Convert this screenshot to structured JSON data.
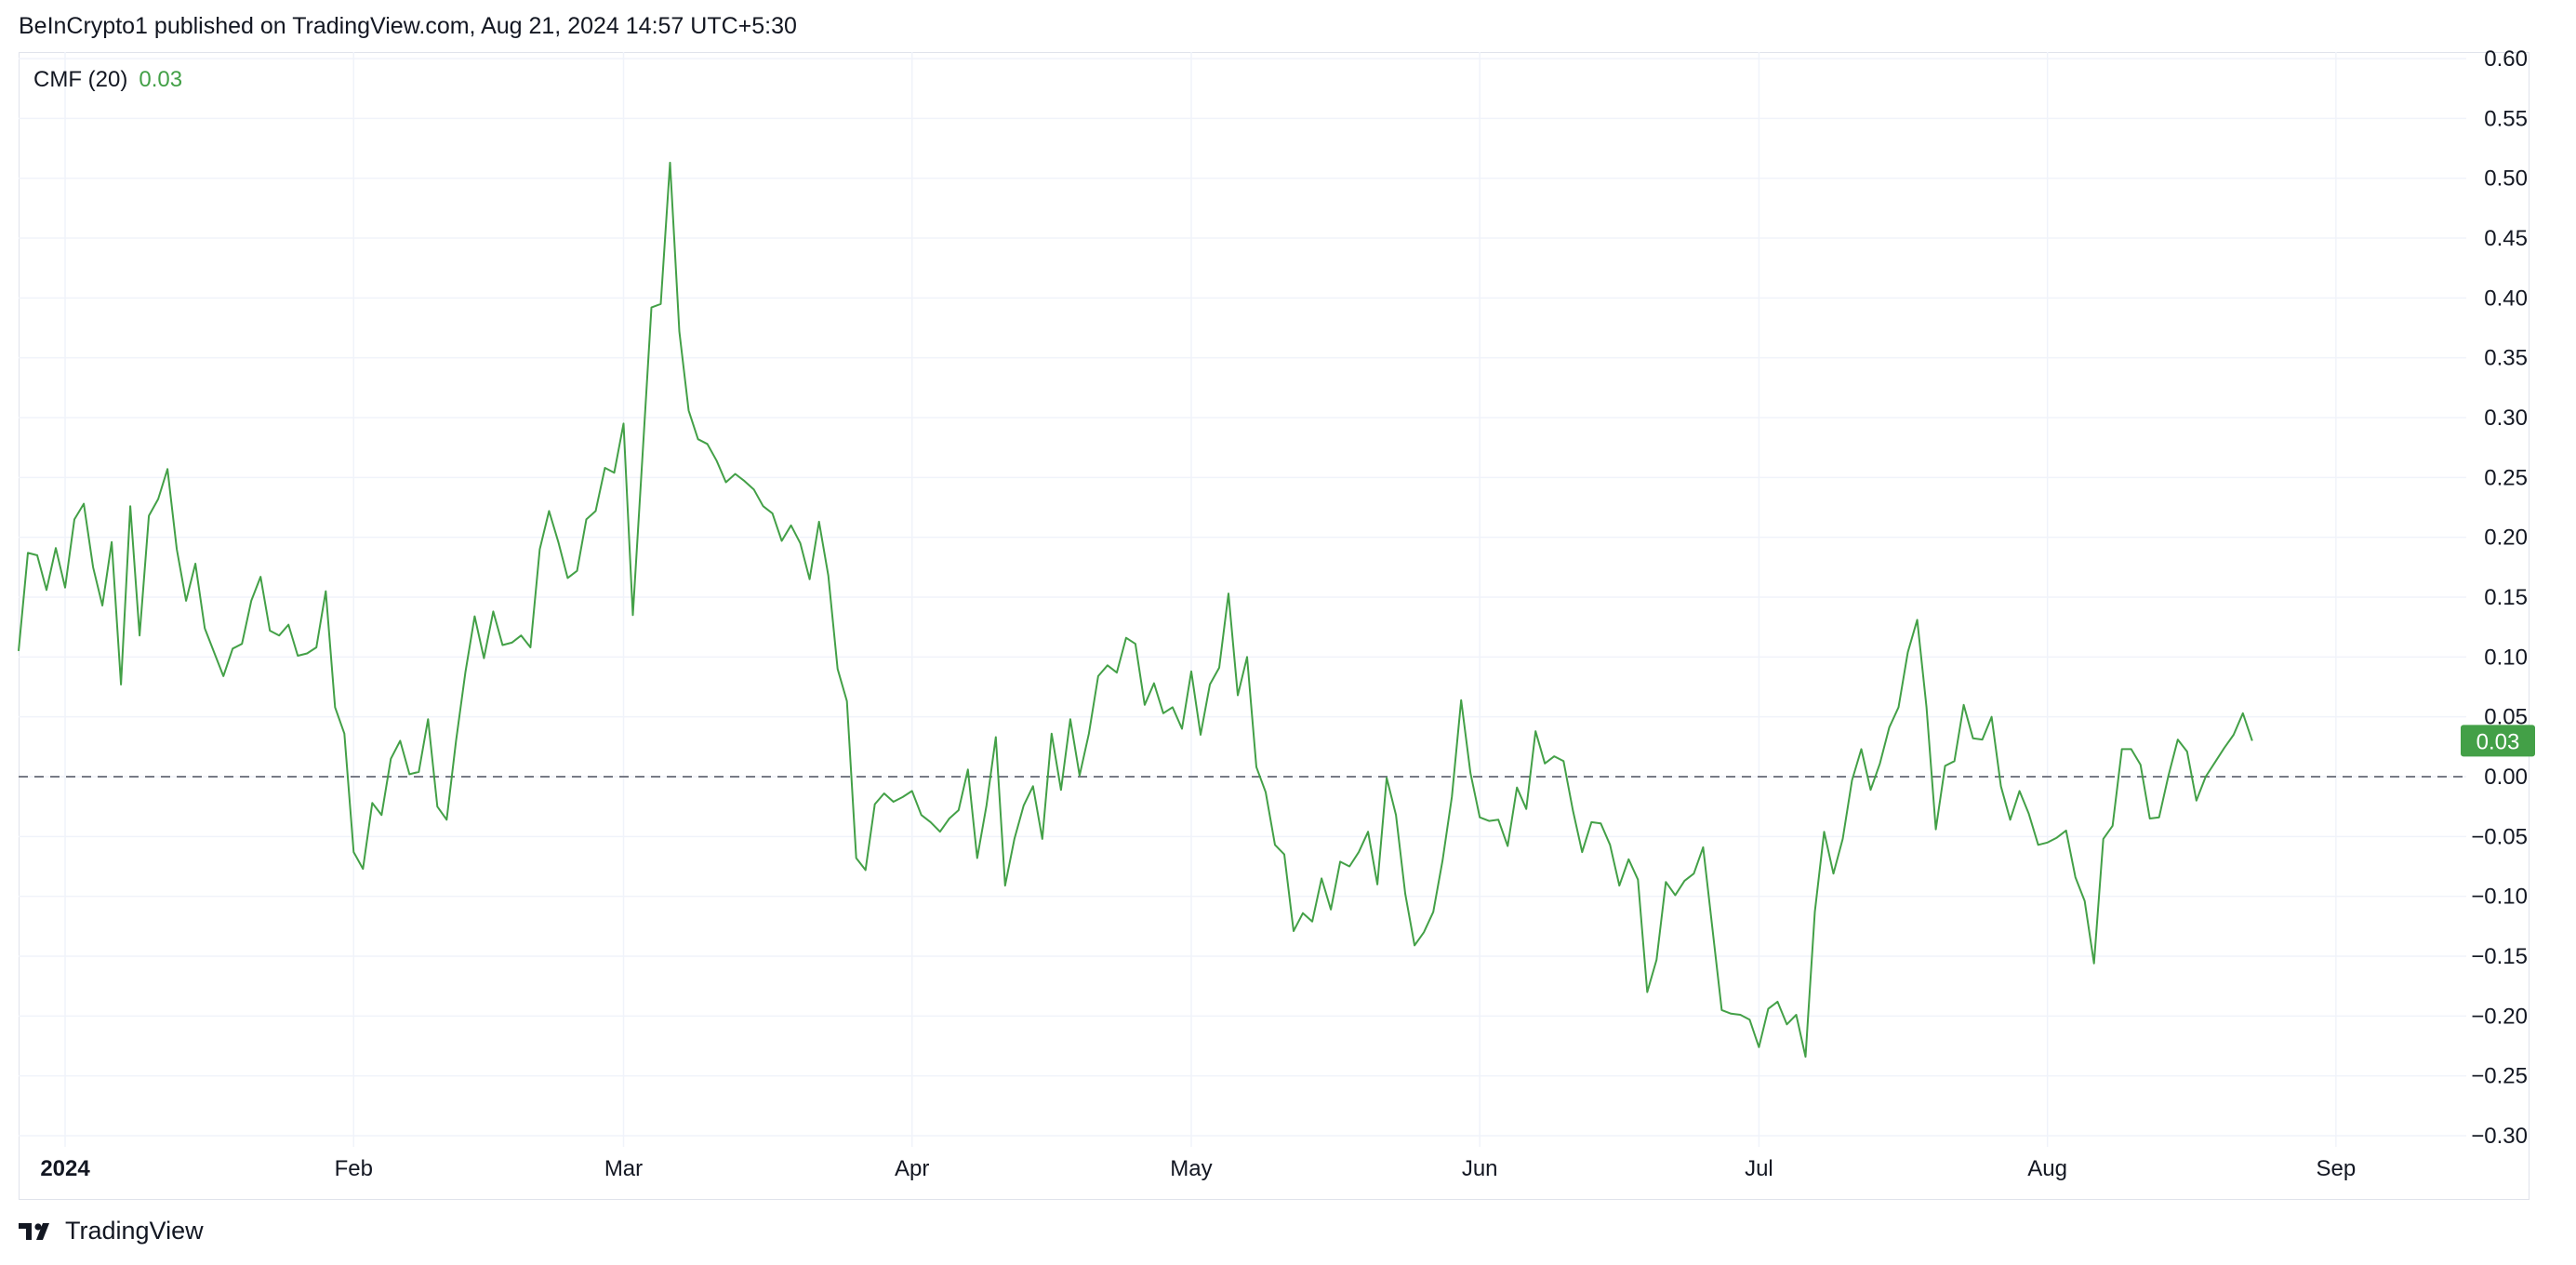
{
  "header": {
    "attribution": "BeInCrypto1 published on TradingView.com, Aug 21, 2024 14:57 UTC+5:30"
  },
  "legend": {
    "indicator": "CMF (20)",
    "value": "0.03"
  },
  "footer": {
    "brand": "TradingView",
    "logo_icon": "tradingview-logo-icon"
  },
  "colors": {
    "line": "#43a047",
    "badge": "#43a047",
    "grid": "#f0f3fa",
    "zero_line": "#787b86",
    "text": "#131722"
  },
  "chart_data": {
    "type": "line",
    "title": "",
    "xlabel": "",
    "ylabel": "",
    "ylim": [
      -0.3,
      0.6
    ],
    "y_ticks": [
      "0.60",
      "0.55",
      "0.50",
      "0.45",
      "0.40",
      "0.35",
      "0.30",
      "0.25",
      "0.20",
      "0.15",
      "0.10",
      "0.05",
      "0.00",
      "−0.05",
      "−0.10",
      "−0.15",
      "−0.20",
      "−0.25",
      "−0.30"
    ],
    "x_tick_labels": [
      {
        "label": "2024",
        "date": "2024-01-01",
        "bold": true
      },
      {
        "label": "Feb",
        "date": "2024-02-01"
      },
      {
        "label": "Mar",
        "date": "2024-03-01"
      },
      {
        "label": "Apr",
        "date": "2024-04-01"
      },
      {
        "label": "May",
        "date": "2024-05-01"
      },
      {
        "label": "Jun",
        "date": "2024-06-01"
      },
      {
        "label": "Jul",
        "date": "2024-07-01"
      },
      {
        "label": "Aug",
        "date": "2024-08-01"
      },
      {
        "label": "Sep",
        "date": "2024-09-01"
      }
    ],
    "x_range": [
      "2023-12-27",
      "2024-09-15"
    ],
    "reference_line": {
      "y": 0.0,
      "style": "dashed"
    },
    "last_value_badge": "0.03",
    "grid": true,
    "series": [
      {
        "values": [
          [
            "2023-12-27",
            0.105
          ],
          [
            "2023-12-28",
            0.187
          ],
          [
            "2023-12-29",
            0.185
          ],
          [
            "2023-12-30",
            0.156
          ],
          [
            "2023-12-31",
            0.191
          ],
          [
            "2024-01-01",
            0.158
          ],
          [
            "2024-01-02",
            0.215
          ],
          [
            "2024-01-03",
            0.228
          ],
          [
            "2024-01-04",
            0.175
          ],
          [
            "2024-01-05",
            0.143
          ],
          [
            "2024-01-06",
            0.196
          ],
          [
            "2024-01-07",
            0.077
          ],
          [
            "2024-01-08",
            0.226
          ],
          [
            "2024-01-09",
            0.118
          ],
          [
            "2024-01-10",
            0.218
          ],
          [
            "2024-01-11",
            0.232
          ],
          [
            "2024-01-12",
            0.257
          ],
          [
            "2024-01-13",
            0.19
          ],
          [
            "2024-01-14",
            0.147
          ],
          [
            "2024-01-15",
            0.178
          ],
          [
            "2024-01-16",
            0.124
          ],
          [
            "2024-01-17",
            0.104
          ],
          [
            "2024-01-18",
            0.084
          ],
          [
            "2024-01-19",
            0.107
          ],
          [
            "2024-01-20",
            0.111
          ],
          [
            "2024-01-21",
            0.147
          ],
          [
            "2024-01-22",
            0.167
          ],
          [
            "2024-01-23",
            0.122
          ],
          [
            "2024-01-24",
            0.118
          ],
          [
            "2024-01-25",
            0.127
          ],
          [
            "2024-01-26",
            0.101
          ],
          [
            "2024-01-27",
            0.103
          ],
          [
            "2024-01-28",
            0.108
          ],
          [
            "2024-01-29",
            0.155
          ],
          [
            "2024-01-30",
            0.058
          ],
          [
            "2024-01-31",
            0.036
          ],
          [
            "2024-02-01",
            -0.063
          ],
          [
            "2024-02-02",
            -0.077
          ],
          [
            "2024-02-03",
            -0.022
          ],
          [
            "2024-02-04",
            -0.032
          ],
          [
            "2024-02-05",
            0.015
          ],
          [
            "2024-02-06",
            0.03
          ],
          [
            "2024-02-07",
            0.002
          ],
          [
            "2024-02-08",
            0.004
          ],
          [
            "2024-02-09",
            0.048
          ],
          [
            "2024-02-10",
            -0.025
          ],
          [
            "2024-02-11",
            -0.036
          ],
          [
            "2024-02-12",
            0.03
          ],
          [
            "2024-02-13",
            0.087
          ],
          [
            "2024-02-14",
            0.134
          ],
          [
            "2024-02-15",
            0.099
          ],
          [
            "2024-02-16",
            0.138
          ],
          [
            "2024-02-17",
            0.11
          ],
          [
            "2024-02-18",
            0.112
          ],
          [
            "2024-02-19",
            0.118
          ],
          [
            "2024-02-20",
            0.108
          ],
          [
            "2024-02-21",
            0.19
          ],
          [
            "2024-02-22",
            0.222
          ],
          [
            "2024-02-23",
            0.196
          ],
          [
            "2024-02-24",
            0.166
          ],
          [
            "2024-02-25",
            0.172
          ],
          [
            "2024-02-26",
            0.215
          ],
          [
            "2024-02-27",
            0.222
          ],
          [
            "2024-02-28",
            0.258
          ],
          [
            "2024-02-29",
            0.254
          ],
          [
            "2024-03-01",
            0.295
          ],
          [
            "2024-03-02",
            0.135
          ],
          [
            "2024-03-03",
            0.263
          ],
          [
            "2024-03-04",
            0.392
          ],
          [
            "2024-03-05",
            0.395
          ],
          [
            "2024-03-06",
            0.513
          ],
          [
            "2024-03-07",
            0.372
          ],
          [
            "2024-03-08",
            0.306
          ],
          [
            "2024-03-09",
            0.282
          ],
          [
            "2024-03-10",
            0.278
          ],
          [
            "2024-03-11",
            0.264
          ],
          [
            "2024-03-12",
            0.246
          ],
          [
            "2024-03-13",
            0.253
          ],
          [
            "2024-03-14",
            0.247
          ],
          [
            "2024-03-15",
            0.24
          ],
          [
            "2024-03-16",
            0.226
          ],
          [
            "2024-03-17",
            0.22
          ],
          [
            "2024-03-18",
            0.197
          ],
          [
            "2024-03-19",
            0.21
          ],
          [
            "2024-03-20",
            0.195
          ],
          [
            "2024-03-21",
            0.165
          ],
          [
            "2024-03-22",
            0.213
          ],
          [
            "2024-03-23",
            0.168
          ],
          [
            "2024-03-24",
            0.09
          ],
          [
            "2024-03-25",
            0.063
          ],
          [
            "2024-03-26",
            -0.068
          ],
          [
            "2024-03-27",
            -0.078
          ],
          [
            "2024-03-28",
            -0.023
          ],
          [
            "2024-03-29",
            -0.014
          ],
          [
            "2024-03-30",
            -0.021
          ],
          [
            "2024-03-31",
            -0.017
          ],
          [
            "2024-04-01",
            -0.012
          ],
          [
            "2024-04-02",
            -0.032
          ],
          [
            "2024-04-03",
            -0.038
          ],
          [
            "2024-04-04",
            -0.046
          ],
          [
            "2024-04-05",
            -0.035
          ],
          [
            "2024-04-06",
            -0.028
          ],
          [
            "2024-04-07",
            0.006
          ],
          [
            "2024-04-08",
            -0.068
          ],
          [
            "2024-04-09",
            -0.024
          ],
          [
            "2024-04-10",
            0.033
          ],
          [
            "2024-04-11",
            -0.091
          ],
          [
            "2024-04-12",
            -0.052
          ],
          [
            "2024-04-13",
            -0.024
          ],
          [
            "2024-04-14",
            -0.008
          ],
          [
            "2024-04-15",
            -0.052
          ],
          [
            "2024-04-16",
            0.036
          ],
          [
            "2024-04-17",
            -0.011
          ],
          [
            "2024-04-18",
            0.048
          ],
          [
            "2024-04-19",
            0.001
          ],
          [
            "2024-04-20",
            0.036
          ],
          [
            "2024-04-21",
            0.084
          ],
          [
            "2024-04-22",
            0.093
          ],
          [
            "2024-04-23",
            0.087
          ],
          [
            "2024-04-24",
            0.116
          ],
          [
            "2024-04-25",
            0.111
          ],
          [
            "2024-04-26",
            0.06
          ],
          [
            "2024-04-27",
            0.078
          ],
          [
            "2024-04-28",
            0.053
          ],
          [
            "2024-04-29",
            0.058
          ],
          [
            "2024-04-30",
            0.04
          ],
          [
            "2024-05-01",
            0.088
          ],
          [
            "2024-05-02",
            0.035
          ],
          [
            "2024-05-03",
            0.077
          ],
          [
            "2024-05-04",
            0.091
          ],
          [
            "2024-05-05",
            0.153
          ],
          [
            "2024-05-06",
            0.068
          ],
          [
            "2024-05-07",
            0.1
          ],
          [
            "2024-05-08",
            0.008
          ],
          [
            "2024-05-09",
            -0.013
          ],
          [
            "2024-05-10",
            -0.057
          ],
          [
            "2024-05-11",
            -0.065
          ],
          [
            "2024-05-12",
            -0.129
          ],
          [
            "2024-05-13",
            -0.114
          ],
          [
            "2024-05-14",
            -0.121
          ],
          [
            "2024-05-15",
            -0.085
          ],
          [
            "2024-05-16",
            -0.111
          ],
          [
            "2024-05-17",
            -0.071
          ],
          [
            "2024-05-18",
            -0.075
          ],
          [
            "2024-05-19",
            -0.063
          ],
          [
            "2024-05-20",
            -0.046
          ],
          [
            "2024-05-21",
            -0.09
          ],
          [
            "2024-05-22",
            -0.001
          ],
          [
            "2024-05-23",
            -0.032
          ],
          [
            "2024-05-24",
            -0.098
          ],
          [
            "2024-05-25",
            -0.141
          ],
          [
            "2024-05-26",
            -0.13
          ],
          [
            "2024-05-27",
            -0.113
          ],
          [
            "2024-05-28",
            -0.07
          ],
          [
            "2024-05-29",
            -0.017
          ],
          [
            "2024-05-30",
            0.064
          ],
          [
            "2024-05-31",
            0.003
          ],
          [
            "2024-06-01",
            -0.034
          ],
          [
            "2024-06-02",
            -0.037
          ],
          [
            "2024-06-03",
            -0.036
          ],
          [
            "2024-06-04",
            -0.058
          ],
          [
            "2024-06-05",
            -0.009
          ],
          [
            "2024-06-06",
            -0.027
          ],
          [
            "2024-06-07",
            0.038
          ],
          [
            "2024-06-08",
            0.011
          ],
          [
            "2024-06-09",
            0.017
          ],
          [
            "2024-06-10",
            0.013
          ],
          [
            "2024-06-11",
            -0.028
          ],
          [
            "2024-06-12",
            -0.063
          ],
          [
            "2024-06-13",
            -0.038
          ],
          [
            "2024-06-14",
            -0.039
          ],
          [
            "2024-06-15",
            -0.057
          ],
          [
            "2024-06-16",
            -0.091
          ],
          [
            "2024-06-17",
            -0.069
          ],
          [
            "2024-06-18",
            -0.086
          ],
          [
            "2024-06-19",
            -0.18
          ],
          [
            "2024-06-20",
            -0.153
          ],
          [
            "2024-06-21",
            -0.088
          ],
          [
            "2024-06-22",
            -0.099
          ],
          [
            "2024-06-23",
            -0.087
          ],
          [
            "2024-06-24",
            -0.081
          ],
          [
            "2024-06-25",
            -0.059
          ],
          [
            "2024-06-26",
            -0.127
          ],
          [
            "2024-06-27",
            -0.195
          ],
          [
            "2024-06-28",
            -0.198
          ],
          [
            "2024-06-29",
            -0.199
          ],
          [
            "2024-06-30",
            -0.203
          ],
          [
            "2024-07-01",
            -0.226
          ],
          [
            "2024-07-02",
            -0.194
          ],
          [
            "2024-07-03",
            -0.188
          ],
          [
            "2024-07-04",
            -0.207
          ],
          [
            "2024-07-05",
            -0.199
          ],
          [
            "2024-07-06",
            -0.234
          ],
          [
            "2024-07-07",
            -0.113
          ],
          [
            "2024-07-08",
            -0.046
          ],
          [
            "2024-07-09",
            -0.081
          ],
          [
            "2024-07-10",
            -0.052
          ],
          [
            "2024-07-11",
            -0.003
          ],
          [
            "2024-07-12",
            0.023
          ],
          [
            "2024-07-13",
            -0.011
          ],
          [
            "2024-07-14",
            0.011
          ],
          [
            "2024-07-15",
            0.041
          ],
          [
            "2024-07-16",
            0.058
          ],
          [
            "2024-07-17",
            0.104
          ],
          [
            "2024-07-18",
            0.131
          ],
          [
            "2024-07-19",
            0.058
          ],
          [
            "2024-07-20",
            -0.044
          ],
          [
            "2024-07-21",
            0.009
          ],
          [
            "2024-07-22",
            0.013
          ],
          [
            "2024-07-23",
            0.06
          ],
          [
            "2024-07-24",
            0.032
          ],
          [
            "2024-07-25",
            0.031
          ],
          [
            "2024-07-26",
            0.05
          ],
          [
            "2024-07-27",
            -0.008
          ],
          [
            "2024-07-28",
            -0.036
          ],
          [
            "2024-07-29",
            -0.012
          ],
          [
            "2024-07-30",
            -0.031
          ],
          [
            "2024-07-31",
            -0.057
          ],
          [
            "2024-08-01",
            -0.055
          ],
          [
            "2024-08-02",
            -0.051
          ],
          [
            "2024-08-03",
            -0.045
          ],
          [
            "2024-08-04",
            -0.084
          ],
          [
            "2024-08-05",
            -0.104
          ],
          [
            "2024-08-06",
            -0.156
          ],
          [
            "2024-08-07",
            -0.052
          ],
          [
            "2024-08-08",
            -0.041
          ],
          [
            "2024-08-09",
            0.023
          ],
          [
            "2024-08-10",
            0.023
          ],
          [
            "2024-08-11",
            0.01
          ],
          [
            "2024-08-12",
            -0.035
          ],
          [
            "2024-08-13",
            -0.034
          ],
          [
            "2024-08-14",
            0.001
          ],
          [
            "2024-08-15",
            0.031
          ],
          [
            "2024-08-16",
            0.021
          ],
          [
            "2024-08-17",
            -0.02
          ],
          [
            "2024-08-18",
            0.0
          ],
          [
            "2024-08-19",
            0.012
          ],
          [
            "2024-08-20",
            0.024
          ],
          [
            "2024-08-21",
            0.035
          ],
          [
            "2024-08-22",
            0.053
          ],
          [
            "2024-08-23",
            0.03
          ]
        ]
      }
    ]
  }
}
